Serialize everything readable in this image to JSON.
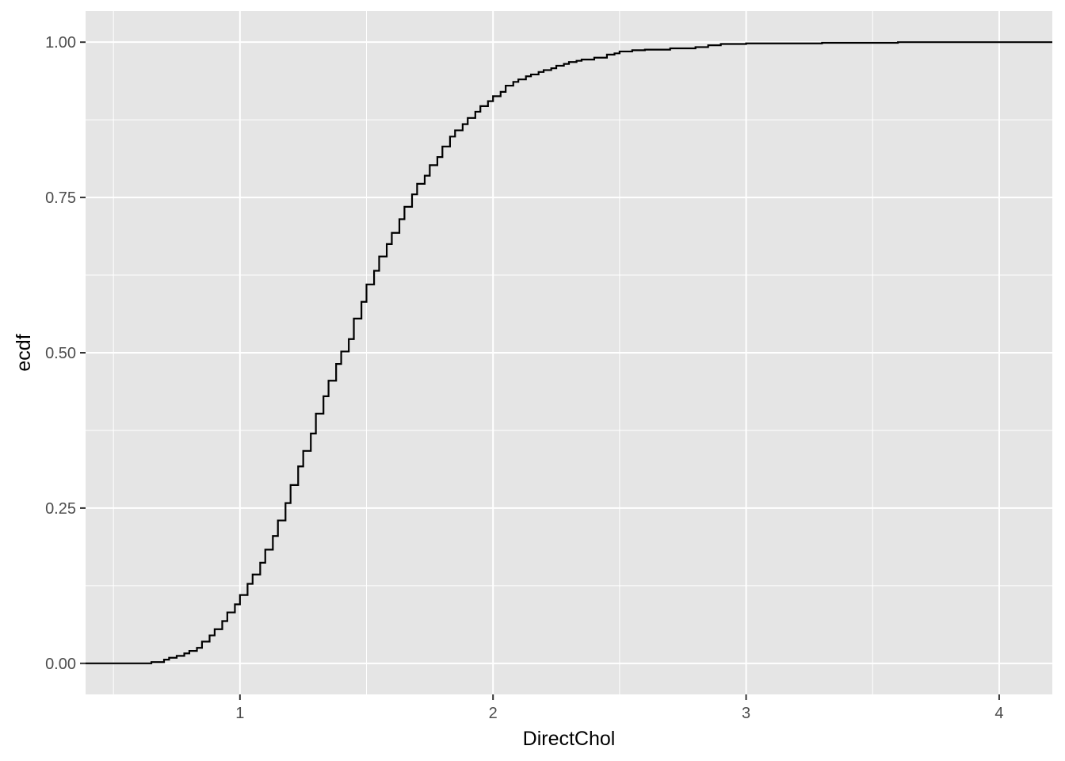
{
  "chart_data": {
    "type": "line",
    "step": true,
    "title": "",
    "xlabel": "DirectChol",
    "ylabel": "ecdf",
    "xlim": [
      0.39,
      4.21
    ],
    "ylim": [
      -0.05,
      1.05
    ],
    "x_ticks": [
      1,
      2,
      3,
      4
    ],
    "x_tick_labels": [
      "1",
      "2",
      "3",
      "4"
    ],
    "x_minor_ticks": [
      0.5,
      1.5,
      2.5,
      3.5
    ],
    "y_ticks": [
      0,
      0.25,
      0.5,
      0.75,
      1.0
    ],
    "y_tick_labels": [
      "0.00",
      "0.25",
      "0.50",
      "0.75",
      "1.00"
    ],
    "y_minor_ticks": [
      0.125,
      0.375,
      0.625,
      0.875
    ],
    "grid": true,
    "legend": "none",
    "colors": {
      "panel": "#e5e5e5",
      "grid": "#ffffff",
      "line": "#000000",
      "tick_text": "#4d4d4d",
      "tick_mark": "#333333"
    },
    "series": [
      {
        "x": [
          0.39,
          0.65,
          0.7,
          0.72,
          0.75,
          0.78,
          0.8,
          0.83,
          0.85,
          0.88,
          0.9,
          0.93,
          0.95,
          0.98,
          1.0,
          1.03,
          1.05,
          1.08,
          1.1,
          1.13,
          1.15,
          1.18,
          1.2,
          1.23,
          1.25,
          1.28,
          1.3,
          1.33,
          1.35,
          1.38,
          1.4,
          1.43,
          1.45,
          1.48,
          1.5,
          1.53,
          1.55,
          1.58,
          1.6,
          1.63,
          1.65,
          1.68,
          1.7,
          1.73,
          1.75,
          1.78,
          1.8,
          1.83,
          1.85,
          1.88,
          1.9,
          1.93,
          1.95,
          1.98,
          2.0,
          2.03,
          2.05,
          2.08,
          2.1,
          2.13,
          2.15,
          2.18,
          2.2,
          2.23,
          2.25,
          2.28,
          2.3,
          2.33,
          2.35,
          2.4,
          2.45,
          2.48,
          2.5,
          2.55,
          2.6,
          2.7,
          2.8,
          2.85,
          2.9,
          3.0,
          3.3,
          3.6,
          4.21
        ],
        "y": [
          0.0,
          0.002,
          0.006,
          0.009,
          0.012,
          0.016,
          0.02,
          0.025,
          0.035,
          0.045,
          0.055,
          0.068,
          0.082,
          0.095,
          0.11,
          0.128,
          0.143,
          0.162,
          0.183,
          0.205,
          0.23,
          0.258,
          0.287,
          0.317,
          0.342,
          0.37,
          0.402,
          0.43,
          0.455,
          0.482,
          0.502,
          0.522,
          0.555,
          0.582,
          0.61,
          0.632,
          0.655,
          0.675,
          0.693,
          0.715,
          0.735,
          0.755,
          0.772,
          0.785,
          0.802,
          0.815,
          0.832,
          0.848,
          0.858,
          0.868,
          0.878,
          0.888,
          0.897,
          0.905,
          0.913,
          0.92,
          0.93,
          0.936,
          0.94,
          0.945,
          0.948,
          0.952,
          0.955,
          0.958,
          0.962,
          0.965,
          0.968,
          0.97,
          0.972,
          0.975,
          0.98,
          0.982,
          0.985,
          0.987,
          0.988,
          0.99,
          0.992,
          0.995,
          0.997,
          0.998,
          0.999,
          1.0,
          1.0
        ]
      }
    ]
  }
}
